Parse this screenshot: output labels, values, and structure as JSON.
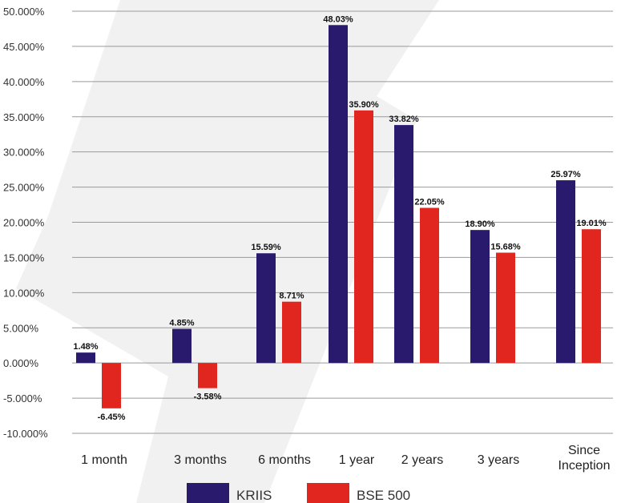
{
  "chart_data": {
    "type": "bar",
    "categories": [
      "1 month",
      "3 months",
      "6 months",
      "1 year",
      "2 years",
      "3 years",
      "Since Inception"
    ],
    "series": [
      {
        "name": "KRIIS",
        "values": [
          1.48,
          4.85,
          15.59,
          48.03,
          33.82,
          18.9,
          25.97
        ],
        "labels": [
          "1.48%",
          "4.85%",
          "15.59%",
          "48.03%",
          "33.82%",
          "18.90%",
          "25.97%"
        ]
      },
      {
        "name": "BSE 500",
        "values": [
          -6.45,
          -3.58,
          8.71,
          35.9,
          22.05,
          15.68,
          19.01
        ],
        "labels": [
          "-6.45%",
          "-3.58%",
          "8.71%",
          "35.90%",
          "22.05%",
          "15.68%",
          "19.01%"
        ]
      }
    ],
    "yticks": [
      "-10.000%",
      "-5.000%",
      "0.000%",
      "5.000%",
      "10.000%",
      "15.000%",
      "20.000%",
      "25.000%",
      "30.000%",
      "35.000%",
      "40.000%",
      "45.000%",
      "50.000%"
    ],
    "ylim": [
      -10,
      50
    ],
    "grid": true,
    "legend_position": "bottom",
    "colors": {
      "KRIIS": "#2a1a6e",
      "BSE 500": "#e0261f"
    }
  }
}
